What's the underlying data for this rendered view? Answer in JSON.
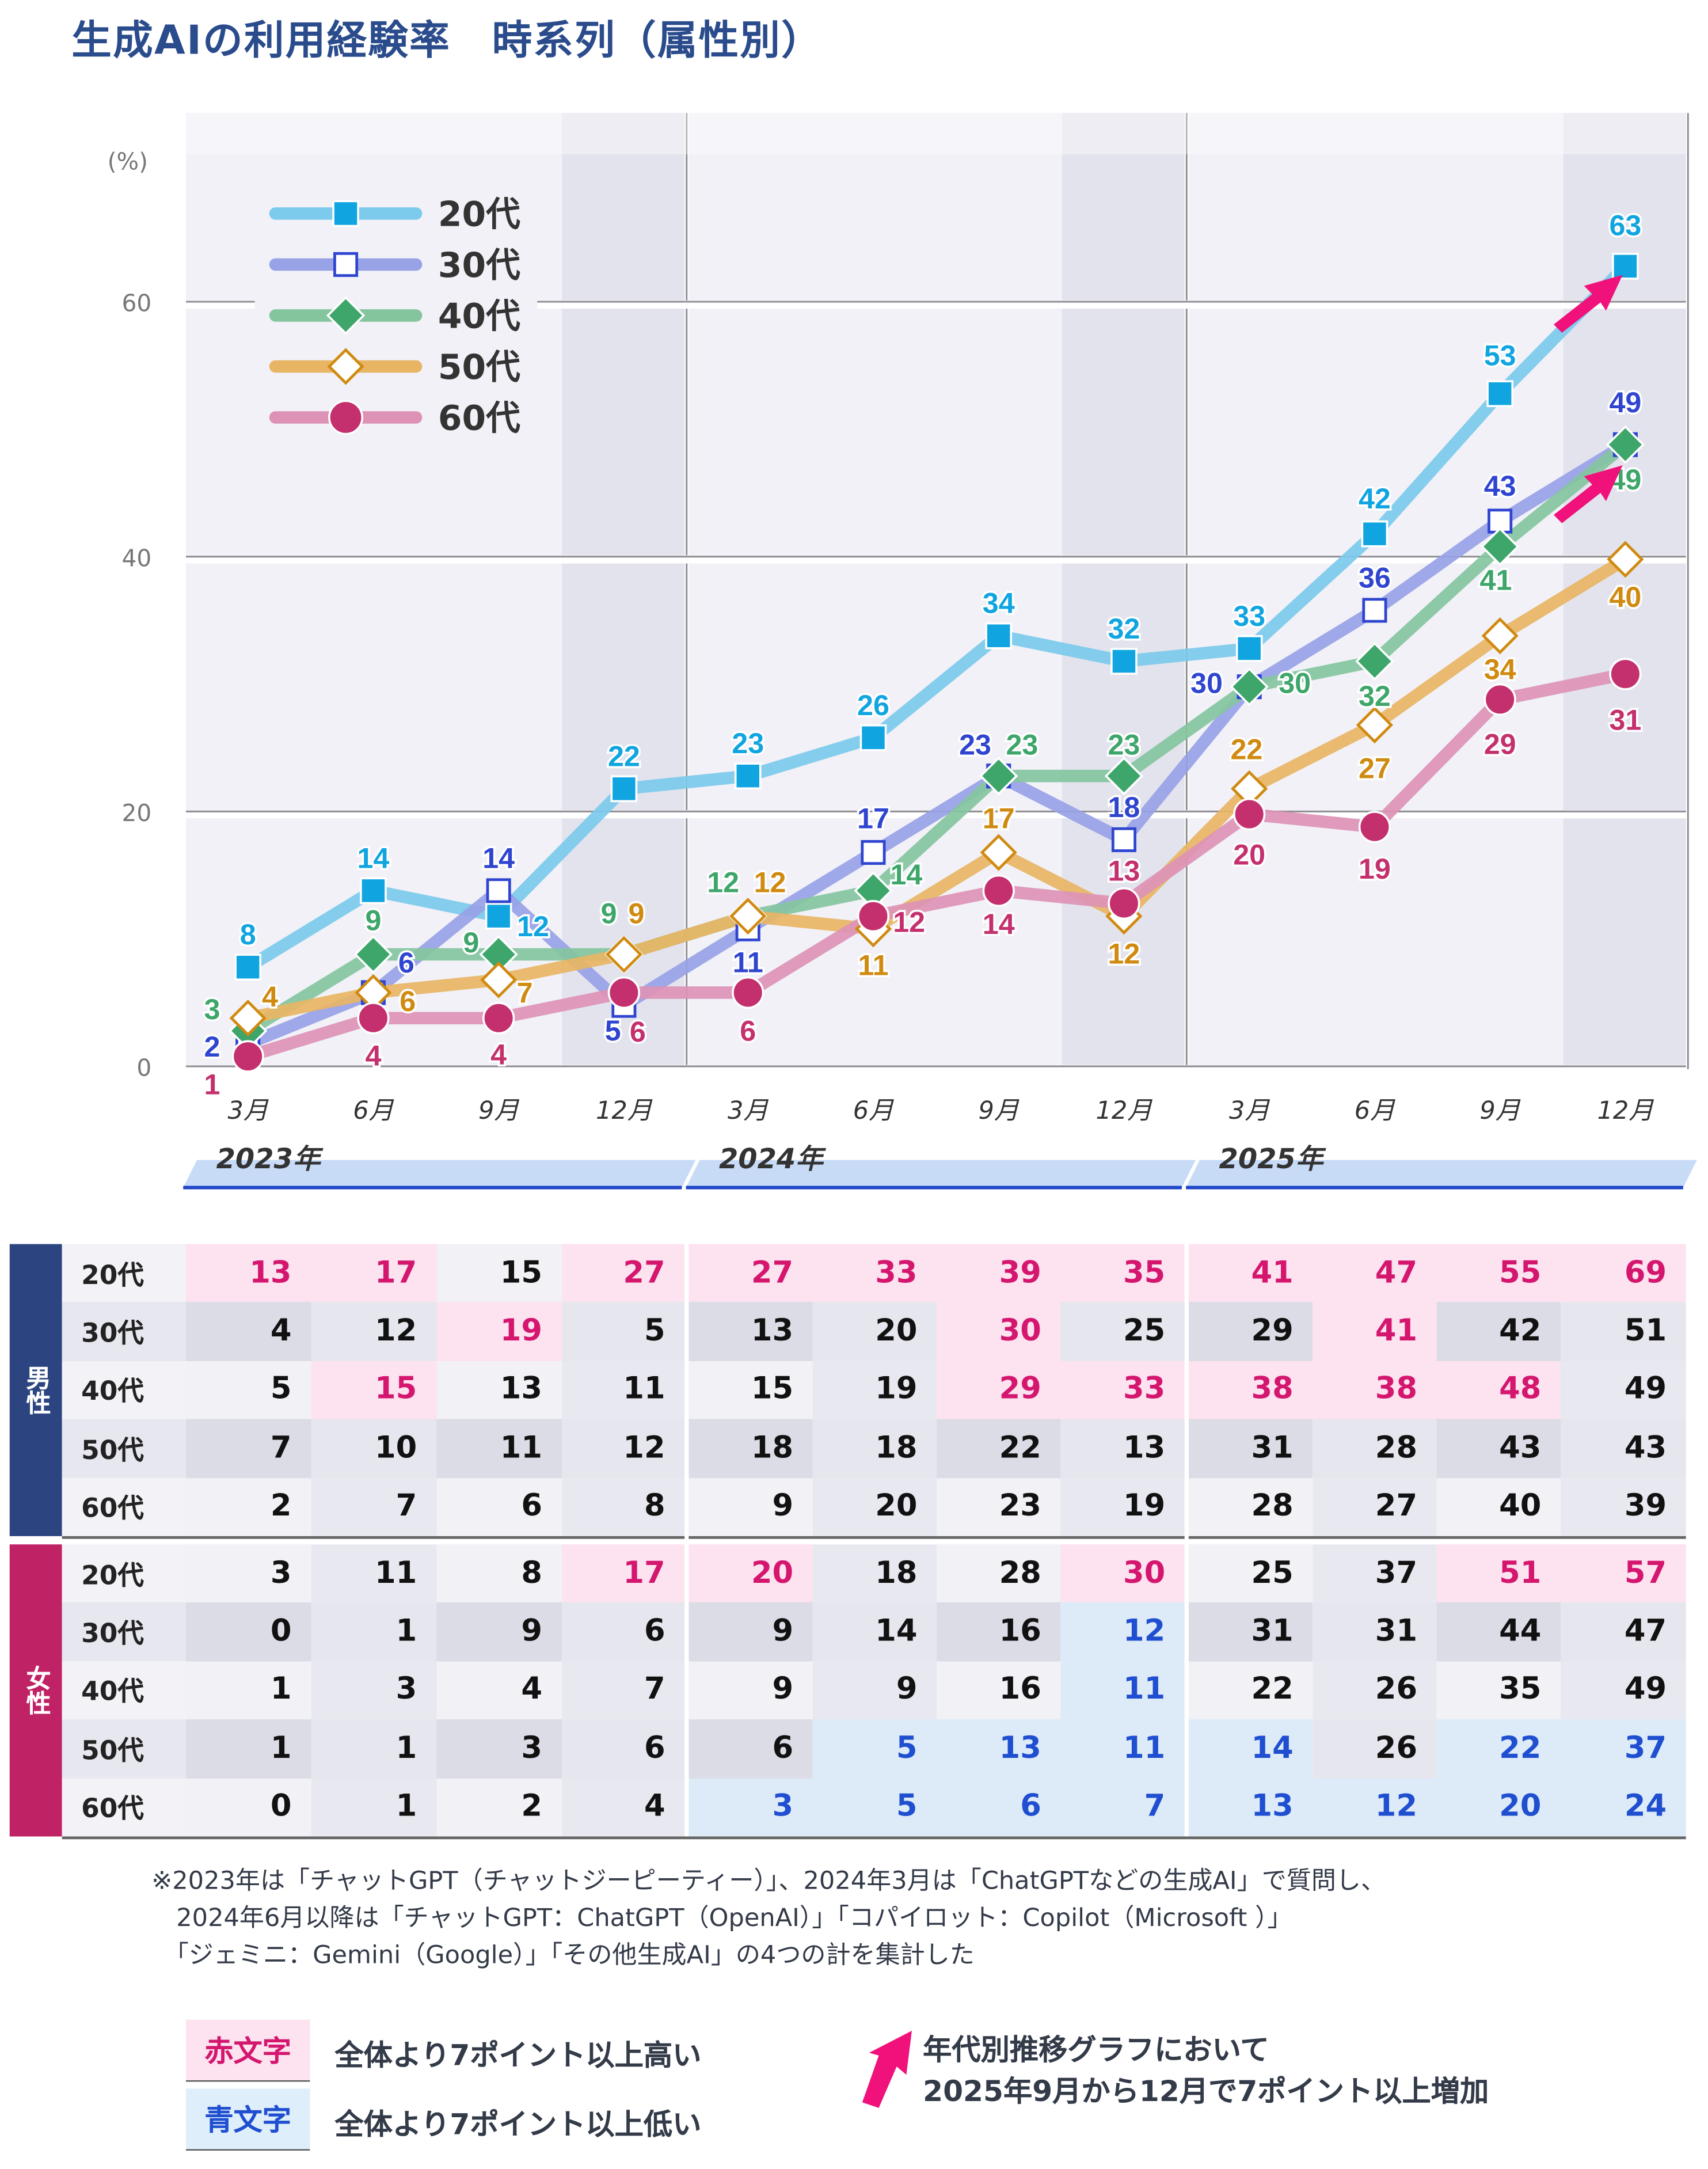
{
  "title": "生成AIの利用経験率　時系列（属性別）",
  "chart_data": {
    "type": "line",
    "ylabel": "(%)",
    "ylim": [
      0,
      70
    ],
    "yticks": [
      0,
      20,
      40,
      60
    ],
    "grid": true,
    "legend_position": "top-left",
    "categories": [
      "3月",
      "6月",
      "9月",
      "12月",
      "3月",
      "6月",
      "9月",
      "12月",
      "3月",
      "6月",
      "9月",
      "12月"
    ],
    "years": [
      "2023年",
      "2024年",
      "2025年"
    ],
    "series": [
      {
        "name": "20代",
        "marker": "filled-square",
        "line_color": "#7ccaec",
        "color": "#10a5e0",
        "values": [
          8,
          14,
          12,
          22,
          23,
          26,
          34,
          32,
          33,
          42,
          53,
          63
        ]
      },
      {
        "name": "30代",
        "marker": "hollow-square",
        "line_color": "#98a2e6",
        "color": "#2f45d0",
        "values": [
          2,
          6,
          14,
          5,
          11,
          17,
          23,
          18,
          30,
          36,
          43,
          49
        ]
      },
      {
        "name": "40代",
        "marker": "filled-diamond",
        "line_color": "#84c59e",
        "color": "#3ea66a",
        "values": [
          3,
          9,
          9,
          9,
          12,
          14,
          23,
          23,
          30,
          32,
          41,
          49
        ]
      },
      {
        "name": "50代",
        "marker": "hollow-diamond",
        "line_color": "#e8b564",
        "color": "#d08a10",
        "values": [
          4,
          6,
          7,
          9,
          12,
          11,
          17,
          12,
          22,
          27,
          34,
          40
        ]
      },
      {
        "name": "60代",
        "marker": "filled-circle",
        "line_color": "#dd92b6",
        "color": "#c4306e",
        "values": [
          1,
          4,
          4,
          6,
          6,
          12,
          14,
          13,
          20,
          19,
          29,
          31
        ]
      }
    ],
    "highlight_arrows": [
      "20代",
      "40代"
    ],
    "arrow_color": "#f0117a"
  },
  "table": {
    "groups": [
      {
        "label": "男性",
        "color": "#2c4580",
        "rows": [
          {
            "age": "20代",
            "values": [
              13,
              17,
              15,
              27,
              27,
              33,
              39,
              35,
              41,
              47,
              55,
              69
            ],
            "flags": [
              "r",
              "r",
              "",
              "r",
              "r",
              "r",
              "r",
              "r",
              "r",
              "r",
              "r",
              "r"
            ]
          },
          {
            "age": "30代",
            "values": [
              4,
              12,
              19,
              5,
              13,
              20,
              30,
              25,
              29,
              41,
              42,
              51
            ],
            "flags": [
              "",
              "",
              "r",
              "",
              "",
              "",
              "r",
              "",
              "",
              "r",
              "",
              ""
            ]
          },
          {
            "age": "40代",
            "values": [
              5,
              15,
              13,
              11,
              15,
              19,
              29,
              33,
              38,
              38,
              48,
              49
            ],
            "flags": [
              "",
              "r",
              "",
              "",
              "",
              "",
              "r",
              "r",
              "r",
              "r",
              "r",
              ""
            ]
          },
          {
            "age": "50代",
            "values": [
              7,
              10,
              11,
              12,
              18,
              18,
              22,
              13,
              31,
              28,
              43,
              43
            ],
            "flags": [
              "",
              "",
              "",
              "",
              "",
              "",
              "",
              "",
              "",
              "",
              "",
              ""
            ]
          },
          {
            "age": "60代",
            "values": [
              2,
              7,
              6,
              8,
              9,
              20,
              23,
              19,
              28,
              27,
              40,
              39
            ],
            "flags": [
              "",
              "",
              "",
              "",
              "",
              "",
              "",
              "",
              "",
              "",
              "",
              ""
            ]
          }
        ]
      },
      {
        "label": "女性",
        "color": "#c02266",
        "rows": [
          {
            "age": "20代",
            "values": [
              3,
              11,
              8,
              17,
              20,
              18,
              28,
              30,
              25,
              37,
              51,
              57
            ],
            "flags": [
              "",
              "",
              "",
              "r",
              "r",
              "",
              "",
              "r",
              "",
              "",
              "r",
              "r"
            ]
          },
          {
            "age": "30代",
            "values": [
              0,
              1,
              9,
              6,
              9,
              14,
              16,
              12,
              31,
              31,
              44,
              47
            ],
            "flags": [
              "",
              "",
              "",
              "",
              "",
              "",
              "",
              "b",
              "",
              "",
              "",
              ""
            ]
          },
          {
            "age": "40代",
            "values": [
              1,
              3,
              4,
              7,
              9,
              9,
              16,
              11,
              22,
              26,
              35,
              49
            ],
            "flags": [
              "",
              "",
              "",
              "",
              "",
              "",
              "",
              "b",
              "",
              "",
              "",
              ""
            ]
          },
          {
            "age": "50代",
            "values": [
              1,
              1,
              3,
              6,
              6,
              5,
              13,
              11,
              14,
              26,
              22,
              37
            ],
            "flags": [
              "",
              "",
              "",
              "",
              "",
              "b",
              "b",
              "b",
              "b",
              "",
              "b",
              "b"
            ]
          },
          {
            "age": "60代",
            "values": [
              0,
              1,
              2,
              4,
              3,
              5,
              6,
              7,
              13,
              12,
              20,
              24
            ],
            "flags": [
              "",
              "",
              "",
              "",
              "b",
              "b",
              "b",
              "b",
              "b",
              "b",
              "b",
              "b"
            ]
          }
        ]
      }
    ],
    "red_color": "#d4166f",
    "blue_color": "#1f4fd0"
  },
  "note": [
    "※2023年は「チャットGPT（チャットジーピーティー）」、2024年3月は「ChatGPTなどの生成AI」で質問し、",
    "　2024年6月以降は「チャットGPT：ChatGPT（OpenAI）」「コパイロット：Copilot（Microsoft ）」",
    "　「ジェミニ：Gemini（Google）」「その他生成AI」の4つの計を集計した"
  ],
  "legend": {
    "red_label": "赤文字",
    "red_desc": "全体より7ポイント以上高い",
    "blue_label": "青文字",
    "blue_desc": "全体より7ポイント以上低い",
    "arrow_desc_1": "年代別推移グラフにおいて",
    "arrow_desc_2": "2025年9月から12月で7ポイント以上増加"
  }
}
